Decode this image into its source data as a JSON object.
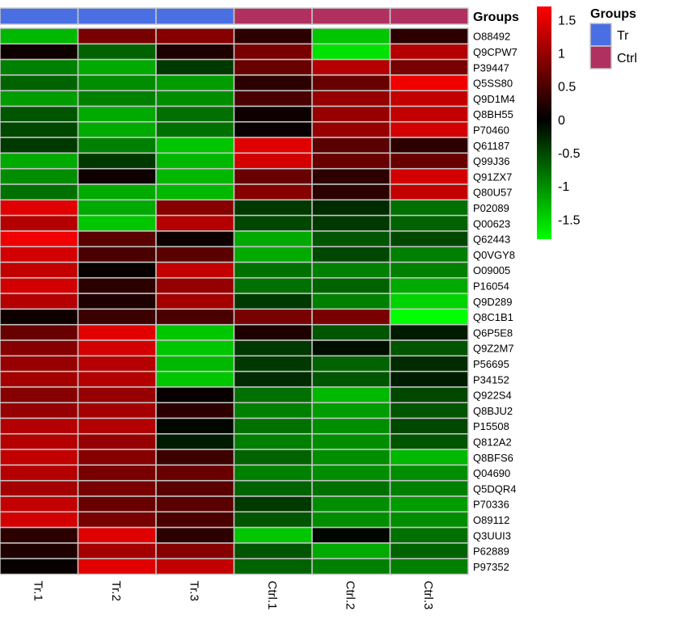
{
  "chart_data": {
    "type": "heatmap",
    "columns": [
      "Tr.1",
      "Tr.2",
      "Tr.3",
      "Ctrl.1",
      "Ctrl.2",
      "Ctrl.3"
    ],
    "column_groups": [
      "Tr",
      "Tr",
      "Tr",
      "Ctrl",
      "Ctrl",
      "Ctrl"
    ],
    "group_annotation": {
      "title": "Groups",
      "legend_title": "Groups",
      "levels": [
        {
          "name": "Tr",
          "color": "#4a6fe3"
        },
        {
          "name": "Ctrl",
          "color": "#b03060"
        }
      ]
    },
    "rows": [
      "O88492",
      "Q9CPW7",
      "P39447",
      "Q5SS80",
      "Q9D1M4",
      "Q8BH55",
      "P70460",
      "Q61187",
      "Q99J36",
      "Q91ZX7",
      "Q80U57",
      "P02089",
      "Q00623",
      "Q62443",
      "Q0VGY8",
      "O09005",
      "P16054",
      "Q9D289",
      "Q8C1B1",
      "Q6P5E8",
      "Q9Z2M7",
      "P56695",
      "P34152",
      "Q922S4",
      "Q8BJU2",
      "P15508",
      "Q812A2",
      "Q8BFS6",
      "Q04690",
      "Q5DQR4",
      "P70336",
      "O89112",
      "Q3UUI3",
      "P62889",
      "P97352"
    ],
    "values": [
      [
        -1.3,
        0.8,
        0.9,
        0.3,
        -1.4,
        0.3
      ],
      [
        0.1,
        -0.7,
        0.2,
        0.8,
        -1.6,
        1.2
      ],
      [
        -0.9,
        -1.2,
        -0.4,
        0.7,
        1.2,
        0.8
      ],
      [
        -0.7,
        -1.0,
        -1.1,
        0.3,
        0.7,
        1.6
      ],
      [
        -1.1,
        -0.9,
        -1.0,
        0.5,
        1.0,
        1.3
      ],
      [
        -0.6,
        -1.2,
        -0.8,
        0.1,
        1.0,
        1.3
      ],
      [
        -0.5,
        -1.2,
        -0.8,
        0.05,
        1.0,
        1.4
      ],
      [
        -0.4,
        -0.9,
        -1.4,
        1.5,
        0.6,
        0.3
      ],
      [
        -1.2,
        -0.4,
        -1.3,
        1.4,
        0.7,
        0.7
      ],
      [
        -1.0,
        0.1,
        -1.3,
        0.7,
        0.3,
        1.4
      ],
      [
        -0.8,
        -1.2,
        -1.3,
        0.9,
        0.3,
        1.3
      ],
      [
        1.5,
        -1.2,
        0.9,
        -0.4,
        -0.3,
        -0.8
      ],
      [
        1.2,
        -1.4,
        1.2,
        -0.5,
        -0.4,
        -0.7
      ],
      [
        1.6,
        0.6,
        0.1,
        -1.2,
        -0.6,
        -0.5
      ],
      [
        1.4,
        0.5,
        0.6,
        -1.2,
        -0.5,
        -0.9
      ],
      [
        1.3,
        0.05,
        1.3,
        -0.8,
        -0.9,
        -0.9
      ],
      [
        1.4,
        0.3,
        1.0,
        -0.8,
        -0.7,
        -1.2
      ],
      [
        1.2,
        0.2,
        1.1,
        -0.4,
        -0.9,
        -1.5
      ],
      [
        0.1,
        0.4,
        0.5,
        0.8,
        0.8,
        -1.8
      ],
      [
        0.7,
        1.5,
        -1.4,
        0.2,
        -0.6,
        -0.2
      ],
      [
        0.9,
        1.4,
        -1.4,
        -0.4,
        -0.1,
        -0.6
      ],
      [
        1.0,
        1.2,
        -1.3,
        -0.4,
        -0.7,
        -0.3
      ],
      [
        1.1,
        1.2,
        -1.4,
        -0.3,
        -0.6,
        -0.2
      ],
      [
        0.9,
        1.0,
        0.05,
        -0.8,
        -1.3,
        -0.5
      ],
      [
        1.0,
        1.1,
        0.3,
        -0.9,
        -1.1,
        -0.6
      ],
      [
        1.2,
        1.2,
        -0.05,
        -0.8,
        -1.0,
        -0.5
      ],
      [
        1.2,
        1.0,
        -0.2,
        -0.9,
        -1.0,
        -0.6
      ],
      [
        1.3,
        0.9,
        0.4,
        -0.7,
        -1.0,
        -1.3
      ],
      [
        1.2,
        0.8,
        0.7,
        -0.9,
        -1.0,
        -1.0
      ],
      [
        1.1,
        0.8,
        0.6,
        -0.7,
        -0.8,
        -0.9
      ],
      [
        1.3,
        0.7,
        0.6,
        -0.4,
        -1.0,
        -1.1
      ],
      [
        1.4,
        0.8,
        0.5,
        -0.6,
        -1.0,
        -1.0
      ],
      [
        0.3,
        1.5,
        0.3,
        -1.4,
        -0.05,
        -0.8
      ],
      [
        0.2,
        1.1,
        0.9,
        -0.6,
        -1.2,
        -0.7
      ],
      [
        0.05,
        1.5,
        1.3,
        -0.7,
        -0.9,
        -0.9
      ]
    ],
    "color_scale": {
      "low": "#00ff00",
      "mid": "#000000",
      "high": "#ff0000",
      "min": -1.8,
      "max": 1.7,
      "ticks": [
        1.5,
        1,
        0.5,
        0,
        -0.5,
        -1,
        -1.5
      ]
    }
  }
}
